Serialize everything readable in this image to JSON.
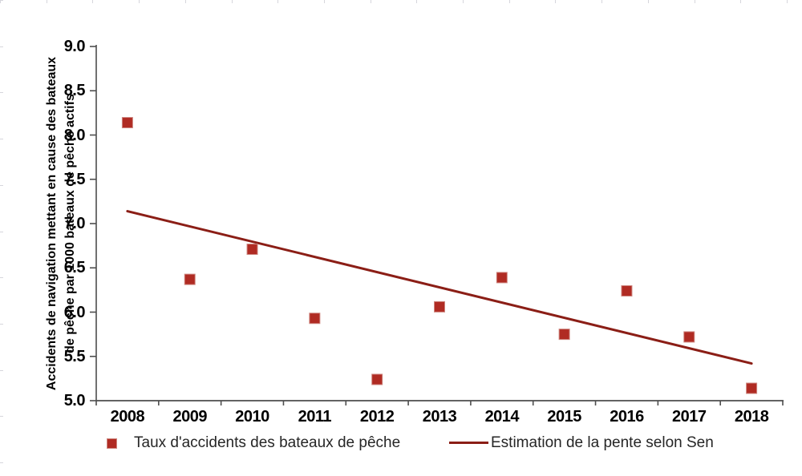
{
  "chart_data": {
    "type": "scatter",
    "title": "",
    "xlabel": "",
    "ylabel": "Accidents de navigation mettant en cause des bateaux de pêche par 1000 bateaux de pêche actifs",
    "ylabel_lines": [
      "Accidents de navigation mettant en cause des bateaux",
      "de pêche par 1000 bateaux de pêche actifs"
    ],
    "categories": [
      "2008",
      "2009",
      "2010",
      "2011",
      "2012",
      "2013",
      "2014",
      "2015",
      "2016",
      "2017",
      "2018"
    ],
    "y_tick_labels": [
      "5.0",
      "5.5",
      "6.0",
      "6.5",
      "7.0",
      "7.5",
      "8.0",
      "8.5",
      "9.0"
    ],
    "ylim": [
      5.0,
      9.0
    ],
    "ytick_step": 0.5,
    "grid": false,
    "legend_position": "bottom",
    "axis_color": "#4d4d4d",
    "series": [
      {
        "name": "Taux d'accidents des bateaux de pêche",
        "type": "scatter",
        "marker": "square",
        "color": "#b02b23",
        "marker_border": "#ce8780",
        "values": [
          8.14,
          6.37,
          6.71,
          5.93,
          5.24,
          6.06,
          6.39,
          5.75,
          6.24,
          5.72,
          5.14
        ]
      },
      {
        "name": "Estimation de la pente selon Sen",
        "type": "line",
        "color": "#8b1e16",
        "x": [
          2008,
          2018
        ],
        "values": [
          7.14,
          5.42
        ]
      }
    ]
  }
}
